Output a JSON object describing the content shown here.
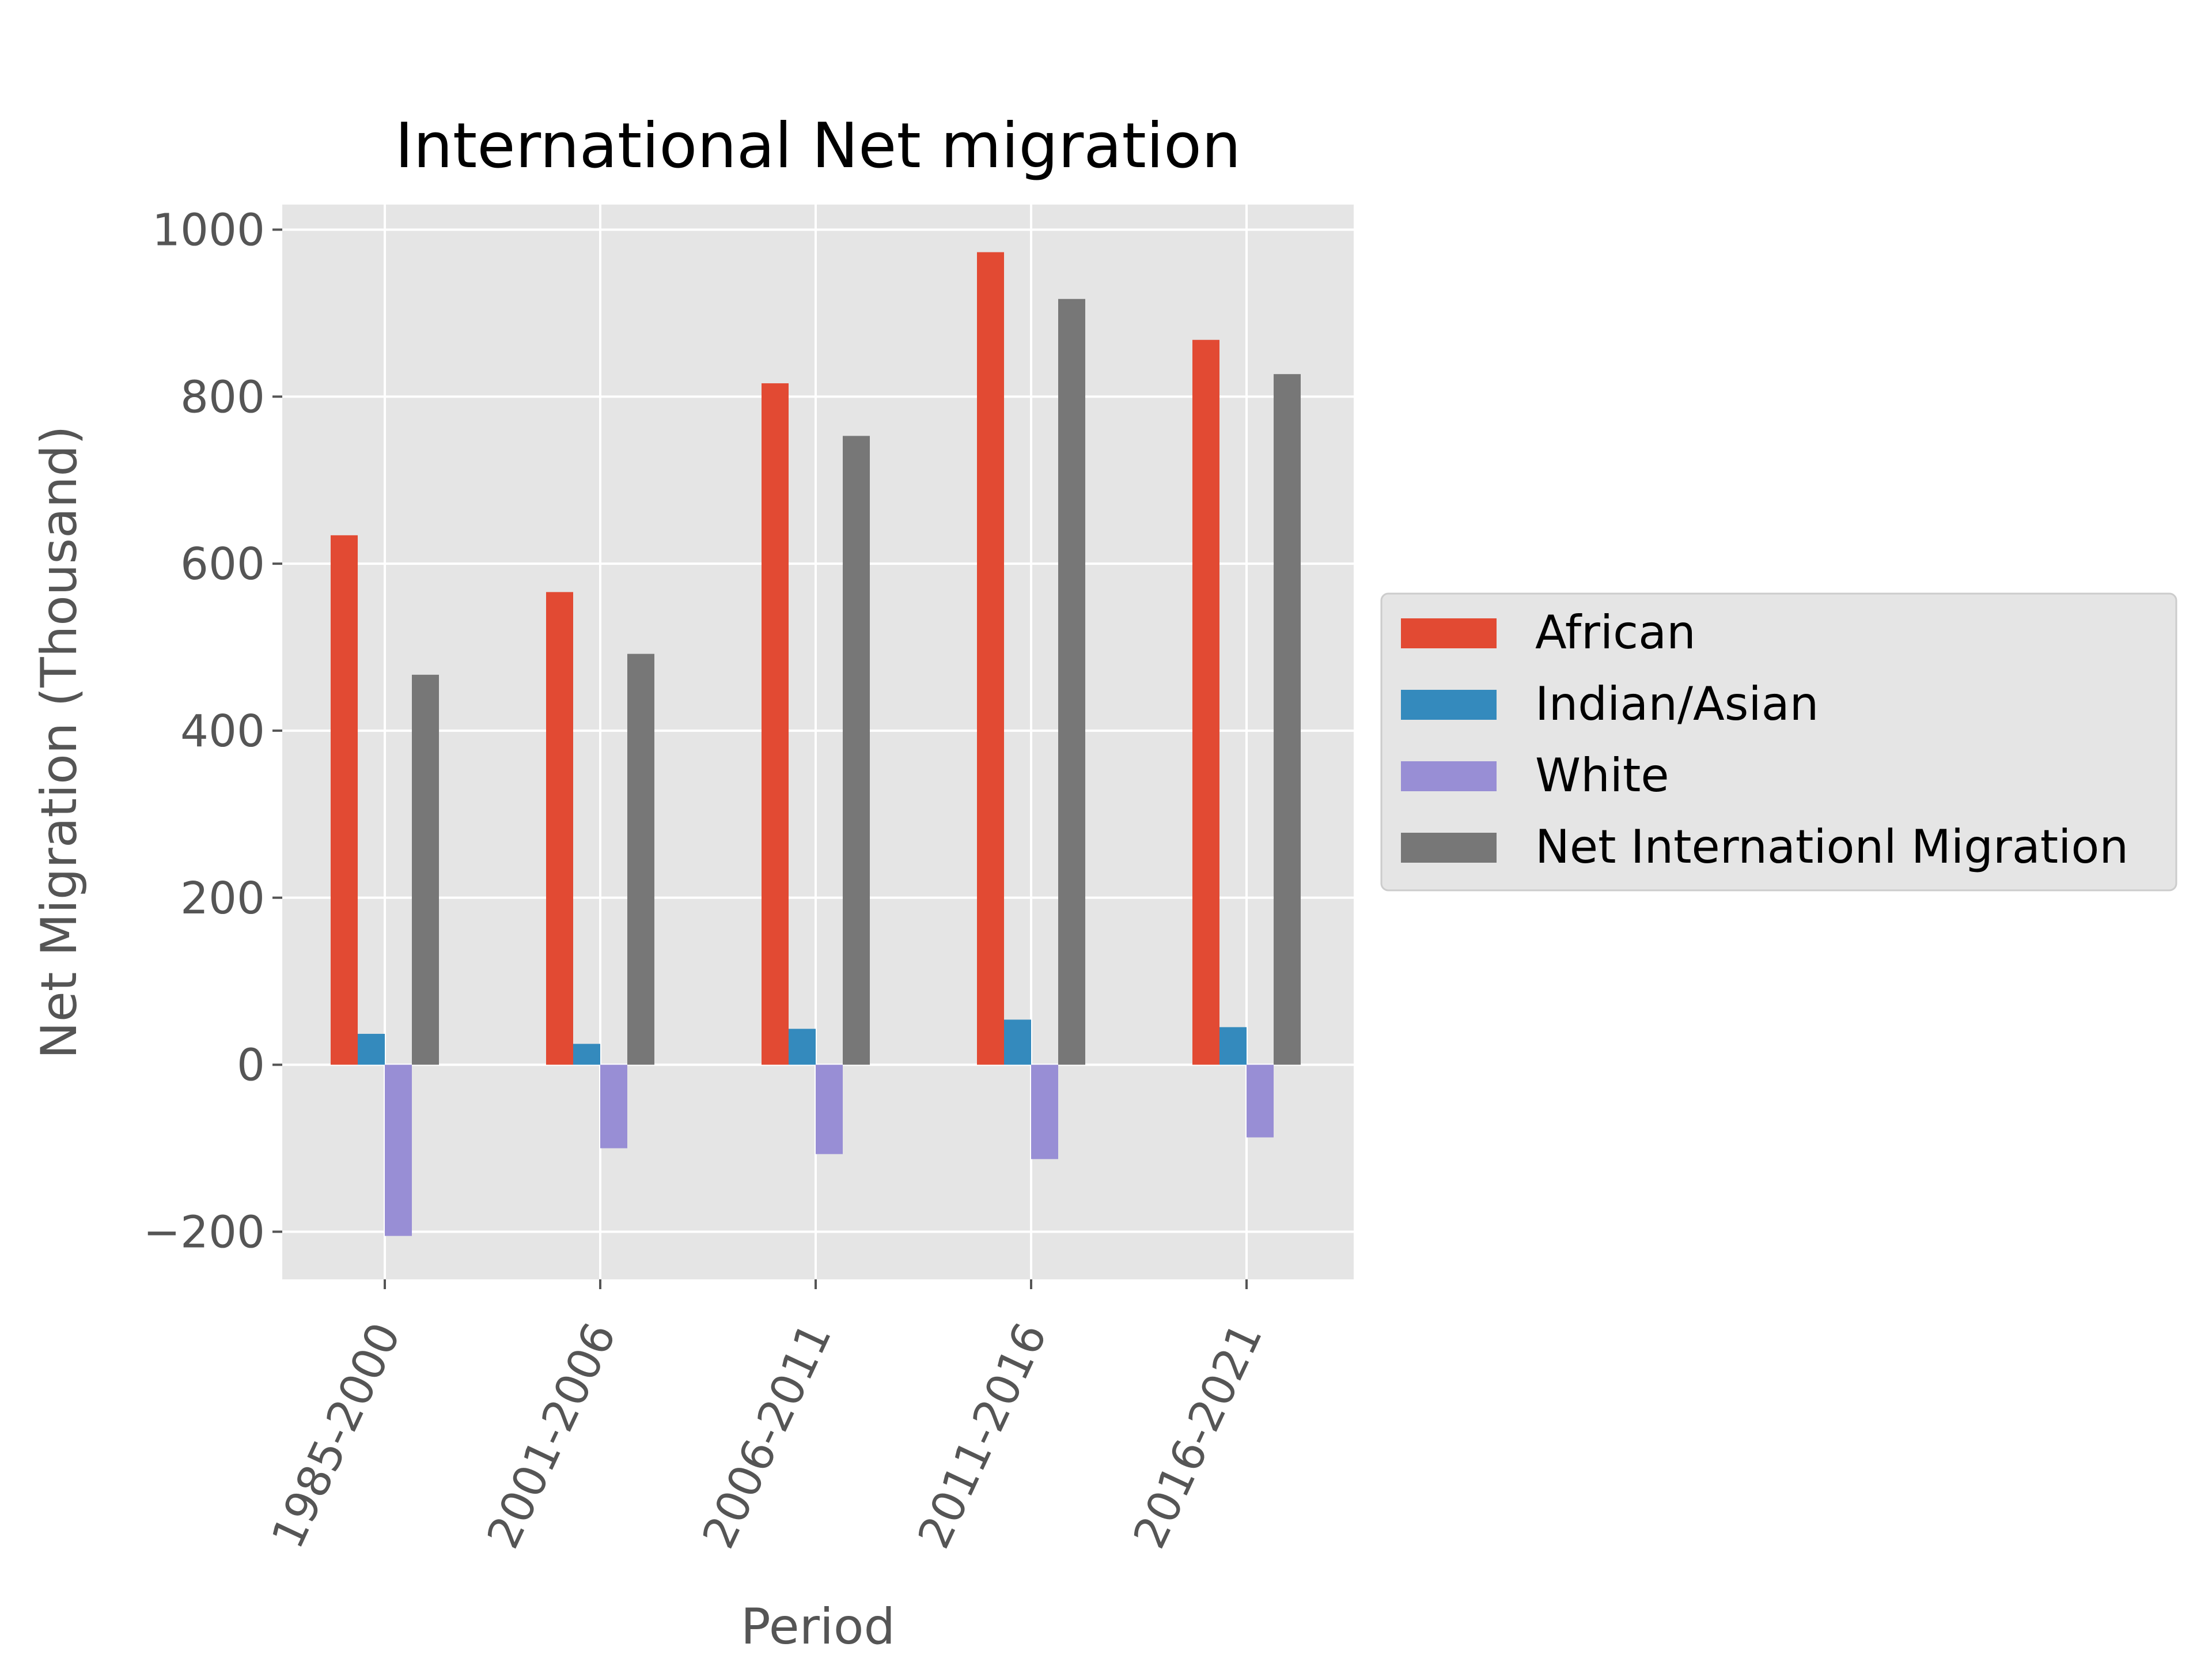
{
  "chart_data": {
    "type": "bar",
    "title": "International Net migration",
    "xlabel": "Period",
    "ylabel": "Net Migration (Thousand)",
    "categories": [
      "1985-2000",
      "2001-2006",
      "2006-2011",
      "2011-2016",
      "2016-2021"
    ],
    "series": [
      {
        "name": "African",
        "color": "#E24A33",
        "values": [
          634,
          566,
          816,
          973,
          868
        ]
      },
      {
        "name": "Indian/Asian",
        "color": "#348ABD",
        "values": [
          37,
          25,
          43,
          54,
          45
        ]
      },
      {
        "name": "White",
        "color": "#988ED5",
        "values": [
          -205,
          -100,
          -107,
          -113,
          -87
        ]
      },
      {
        "name": "Net Internationl Migration",
        "color": "#777777",
        "values": [
          467,
          492,
          753,
          917,
          827
        ]
      }
    ],
    "ylim": [
      -257,
      1030
    ],
    "yticks": [
      -200,
      0,
      200,
      400,
      600,
      800,
      1000
    ],
    "ytick_labels": [
      "−200",
      "0",
      "200",
      "400",
      "600",
      "800",
      "1000"
    ],
    "grid": true,
    "legend_position": "center-right outside",
    "style": {
      "background": "#E5E5E5",
      "grid_color": "#FFFFFF",
      "tick_color": "#555555"
    }
  }
}
